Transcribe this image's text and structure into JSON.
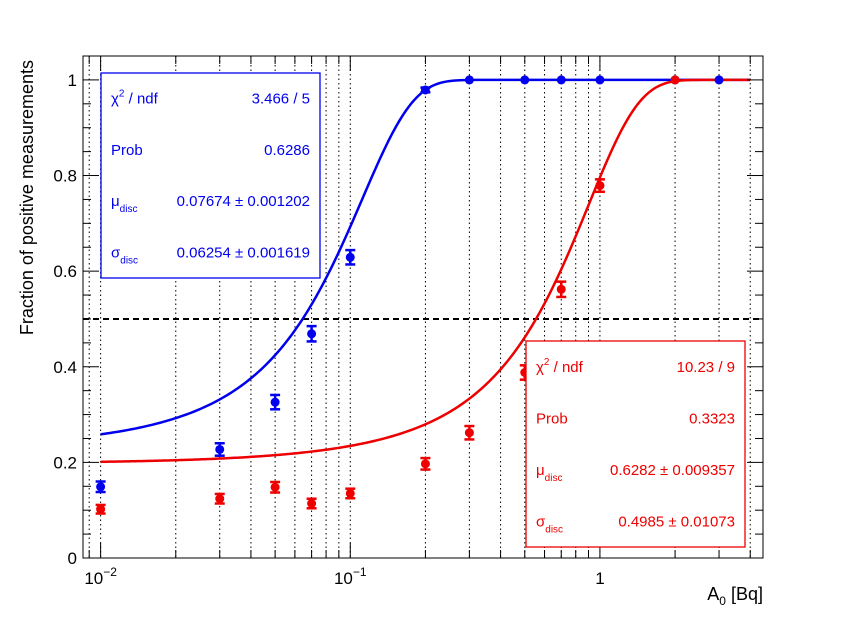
{
  "chart_data": {
    "type": "scatter",
    "title": "",
    "xlabel": "A",
    "xlabel_sub": "0",
    "xlabel_unit": " [Bq]",
    "ylabel": "Fraction of positive measurements",
    "xscale": "log",
    "xlim": [
      0.0085,
      4.5
    ],
    "ylim": [
      0,
      1.05
    ],
    "grid": "vertical dotted lines at log decades",
    "x_ticks": [
      {
        "value": 0.01,
        "base": "10",
        "exp": "−2"
      },
      {
        "value": 0.1,
        "base": "10",
        "exp": "−1"
      },
      {
        "value": 1,
        "base": "1",
        "exp": ""
      }
    ],
    "y_ticks": [
      {
        "value": 0,
        "label": "0"
      },
      {
        "value": 0.2,
        "label": "0.2"
      },
      {
        "value": 0.4,
        "label": "0.4"
      },
      {
        "value": 0.6,
        "label": "0.6"
      },
      {
        "value": 0.8,
        "label": "0.8"
      },
      {
        "value": 1,
        "label": "1"
      }
    ],
    "reference_line": {
      "y": 0.5,
      "style": "dashed",
      "color": "#000000"
    },
    "series": [
      {
        "color": "#0000ee",
        "points": [
          {
            "x": 0.01,
            "y": 0.149,
            "err": 0.011
          },
          {
            "x": 0.03,
            "y": 0.227,
            "err": 0.013
          },
          {
            "x": 0.05,
            "y": 0.326,
            "err": 0.015
          },
          {
            "x": 0.07,
            "y": 0.469,
            "err": 0.016
          },
          {
            "x": 0.1,
            "y": 0.629,
            "err": 0.015
          },
          {
            "x": 0.2,
            "y": 0.979,
            "err": 0.005
          },
          {
            "x": 0.3,
            "y": 1.0,
            "err": 0
          },
          {
            "x": 0.5,
            "y": 1.0,
            "err": 0
          },
          {
            "x": 0.7,
            "y": 1.0,
            "err": 0
          },
          {
            "x": 1.0,
            "y": 1.0,
            "err": 0
          },
          {
            "x": 2.0,
            "y": 1.0,
            "err": 0
          },
          {
            "x": 3.0,
            "y": 1.0,
            "err": 0
          }
        ],
        "fit": {
          "function": "0.135 + 0.865 * Phi((x - mu) / sigma)",
          "mu": 0.07674,
          "sigma": 0.06254,
          "x_range": [
            0.01,
            4.0
          ]
        }
      },
      {
        "color": "#ee0000",
        "points": [
          {
            "x": 0.01,
            "y": 0.102,
            "err": 0.009
          },
          {
            "x": 0.03,
            "y": 0.124,
            "err": 0.01
          },
          {
            "x": 0.05,
            "y": 0.148,
            "err": 0.011
          },
          {
            "x": 0.07,
            "y": 0.114,
            "err": 0.01
          },
          {
            "x": 0.1,
            "y": 0.135,
            "err": 0.01
          },
          {
            "x": 0.2,
            "y": 0.197,
            "err": 0.012
          },
          {
            "x": 0.3,
            "y": 0.262,
            "err": 0.014
          },
          {
            "x": 0.5,
            "y": 0.388,
            "err": 0.015
          },
          {
            "x": 0.7,
            "y": 0.562,
            "err": 0.016
          },
          {
            "x": 1.0,
            "y": 0.779,
            "err": 0.013
          },
          {
            "x": 2.0,
            "y": 1.0,
            "err": 0
          }
        ],
        "fit": {
          "function": "0.105 + 0.895 * Phi((x - mu) / sigma)",
          "mu": 0.6282,
          "sigma": 0.4985,
          "x_range": [
            0.01,
            4.0
          ]
        }
      }
    ],
    "stat_boxes": [
      {
        "color": "#0000ee",
        "rows": [
          {
            "label": "χ",
            "sup": "2",
            "rest": " / ndf",
            "sub": "",
            "value": "3.466 / 5"
          },
          {
            "label": "Prob",
            "sup": "",
            "rest": "",
            "sub": "",
            "value": "0.6286"
          },
          {
            "label": "μ",
            "sup": "",
            "rest": "",
            "sub": "disc",
            "value": "0.07674 ± 0.001202"
          },
          {
            "label": "σ",
            "sup": "",
            "rest": "",
            "sub": "disc",
            "value": "0.06254 ± 0.001619"
          }
        ]
      },
      {
        "color": "#ee0000",
        "rows": [
          {
            "label": "χ",
            "sup": "2",
            "rest": " / ndf",
            "sub": "",
            "value": "10.23 / 9"
          },
          {
            "label": "Prob",
            "sup": "",
            "rest": "",
            "sub": "",
            "value": "0.3323"
          },
          {
            "label": "μ",
            "sup": "",
            "rest": "",
            "sub": "disc",
            "value": "0.6282 ± 0.009357"
          },
          {
            "label": "σ",
            "sup": "",
            "rest": "",
            "sub": "disc",
            "value": "0.4985 ± 0.01073"
          }
        ]
      }
    ]
  }
}
